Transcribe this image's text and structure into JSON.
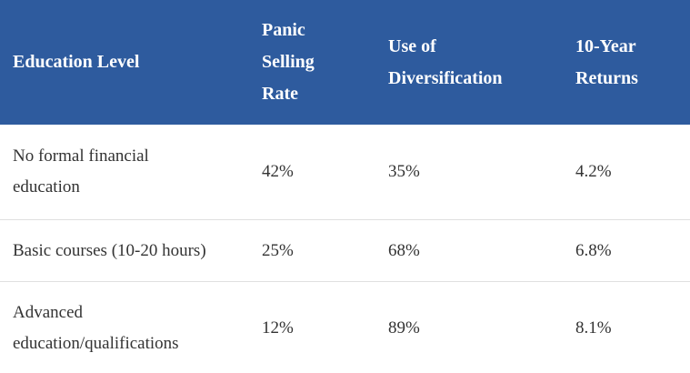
{
  "colors": {
    "header_bg": "#2e5b9e",
    "header_text": "#ffffff",
    "body_text": "#333333",
    "divider": "#e0e0e0",
    "body_bg": "#ffffff"
  },
  "table": {
    "columns": [
      {
        "display": "Education Level"
      },
      {
        "display": "Panic\nSelling\nRate"
      },
      {
        "display": "Use of\nDiversification"
      },
      {
        "display": "10-Year\nReturns"
      }
    ],
    "rows": [
      {
        "cells": [
          "No formal financial\neducation",
          "42%",
          "35%",
          "4.2%"
        ]
      },
      {
        "cells": [
          "Basic courses (10-20 hours)",
          "25%",
          "68%",
          "6.8%"
        ]
      },
      {
        "cells": [
          "Advanced\neducation/qualifications",
          "12%",
          "89%",
          "8.1%"
        ]
      }
    ]
  },
  "chart_data": {
    "type": "table",
    "title": "",
    "columns": [
      "Education Level",
      "Panic Selling Rate",
      "Use of Diversification",
      "10-Year Returns"
    ],
    "rows": [
      [
        "No formal financial education",
        "42%",
        "35%",
        "4.2%"
      ],
      [
        "Basic courses (10-20 hours)",
        "25%",
        "68%",
        "6.8%"
      ],
      [
        "Advanced education/qualifications",
        "12%",
        "89%",
        "8.1%"
      ]
    ],
    "notes": {
      "panic_selling_rate_values": [
        42,
        25,
        12
      ],
      "use_of_diversification_values": [
        35,
        68,
        89
      ],
      "ten_year_returns_values": [
        4.2,
        6.8,
        8.1
      ],
      "units": "percent"
    }
  }
}
